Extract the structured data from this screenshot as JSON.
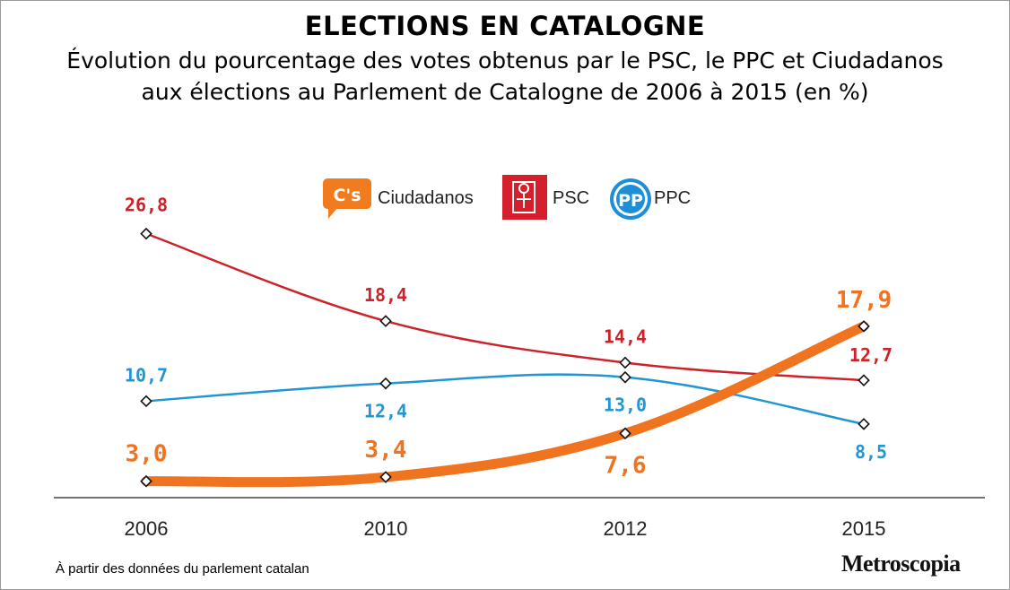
{
  "title": "ELECTIONS EN CATALOGNE",
  "subtitle": "Évolution du pourcentage des votes obtenus par le PSC, le PPC et Ciudadanos aux élections au Parlement de Catalogne de 2006 à 2015 (en %)",
  "source": "À partir des données du parlement catalan",
  "brand": "Metroscopia",
  "legend": [
    {
      "logo": "C's",
      "label": "Ciudadanos",
      "color": "#f07c1f"
    },
    {
      "logo": "",
      "label": "PSC",
      "color": "#d5202c"
    },
    {
      "logo": "PP",
      "label": "PPC",
      "color": "#1d8fd6"
    }
  ],
  "chart_data": {
    "type": "line",
    "title": "ELECTIONS EN CATALOGNE",
    "categories": [
      "2006",
      "2010",
      "2012",
      "2015"
    ],
    "ylim": [
      0,
      30
    ],
    "grid": false,
    "legend_position": "top",
    "series": [
      {
        "name": "PSC",
        "color": "#cc2229",
        "values": [
          26.8,
          18.4,
          14.4,
          12.7
        ],
        "labels": [
          "26,8",
          "18,4",
          "14,4",
          "12,7"
        ]
      },
      {
        "name": "PPC",
        "color": "#2196d3",
        "values": [
          10.7,
          12.4,
          13.0,
          8.5
        ],
        "labels": [
          "10,7",
          "12,4",
          "13,0",
          "8,5"
        ]
      },
      {
        "name": "Ciudadanos",
        "color": "#f07320",
        "values": [
          3.0,
          3.4,
          7.6,
          17.9
        ],
        "labels": [
          "3,0",
          "3,4",
          "7,6",
          "17,9"
        ]
      }
    ]
  }
}
